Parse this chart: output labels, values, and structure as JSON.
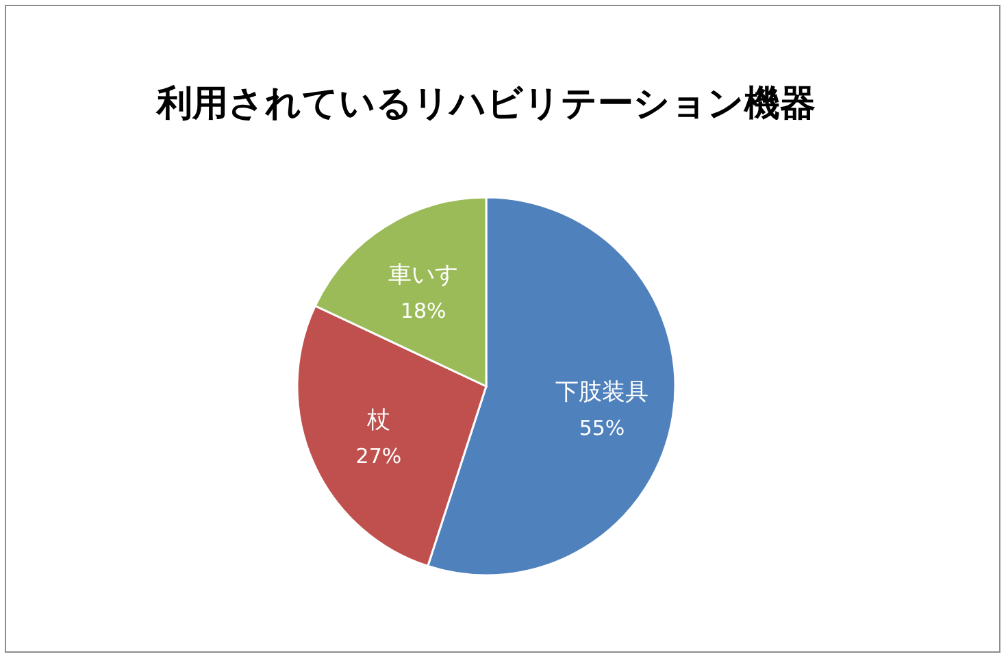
{
  "chart_data": {
    "type": "pie",
    "title": "利用されているリハビリテーション機器",
    "categories": [
      "下肢装具",
      "杖",
      "車いす"
    ],
    "values": [
      55,
      27,
      18
    ],
    "colors": [
      "#4f81bd",
      "#c0504d",
      "#9bbb59"
    ],
    "value_labels": [
      "55%",
      "27%",
      "18%"
    ],
    "legend": false
  }
}
